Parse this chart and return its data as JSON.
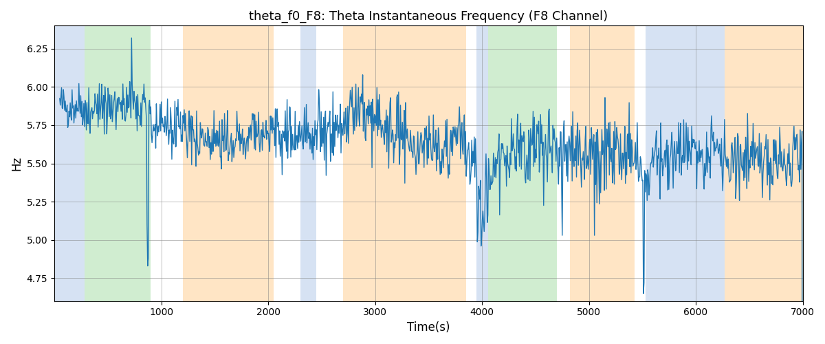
{
  "title": "theta_f0_F8: Theta Instantaneous Frequency (F8 Channel)",
  "xlabel": "Time(s)",
  "ylabel": "Hz",
  "xlim": [
    0,
    7000
  ],
  "ylim": [
    4.6,
    6.4
  ],
  "yticks": [
    4.75,
    5.0,
    5.25,
    5.5,
    5.75,
    6.0,
    6.25
  ],
  "xticks": [
    1000,
    2000,
    3000,
    4000,
    5000,
    6000,
    7000
  ],
  "line_color": "#1f77b4",
  "line_width": 1.0,
  "bg_color": "#ffffff",
  "regions": [
    {
      "start": 0,
      "end": 280,
      "color": "#aec6e8",
      "alpha": 0.5
    },
    {
      "start": 280,
      "end": 900,
      "color": "#98d898",
      "alpha": 0.45
    },
    {
      "start": 1200,
      "end": 2050,
      "color": "#ffd096",
      "alpha": 0.55
    },
    {
      "start": 2300,
      "end": 2450,
      "color": "#aec6e8",
      "alpha": 0.5
    },
    {
      "start": 2700,
      "end": 3850,
      "color": "#ffd096",
      "alpha": 0.55
    },
    {
      "start": 3950,
      "end": 4060,
      "color": "#aec6e8",
      "alpha": 0.5
    },
    {
      "start": 4060,
      "end": 4700,
      "color": "#98d898",
      "alpha": 0.45
    },
    {
      "start": 4820,
      "end": 5430,
      "color": "#ffd096",
      "alpha": 0.55
    },
    {
      "start": 5530,
      "end": 6270,
      "color": "#aec6e8",
      "alpha": 0.5
    },
    {
      "start": 6270,
      "end": 7050,
      "color": "#ffd096",
      "alpha": 0.55
    }
  ],
  "seed": 42,
  "n_points": 1200,
  "time_start": 50,
  "time_end": 7000
}
